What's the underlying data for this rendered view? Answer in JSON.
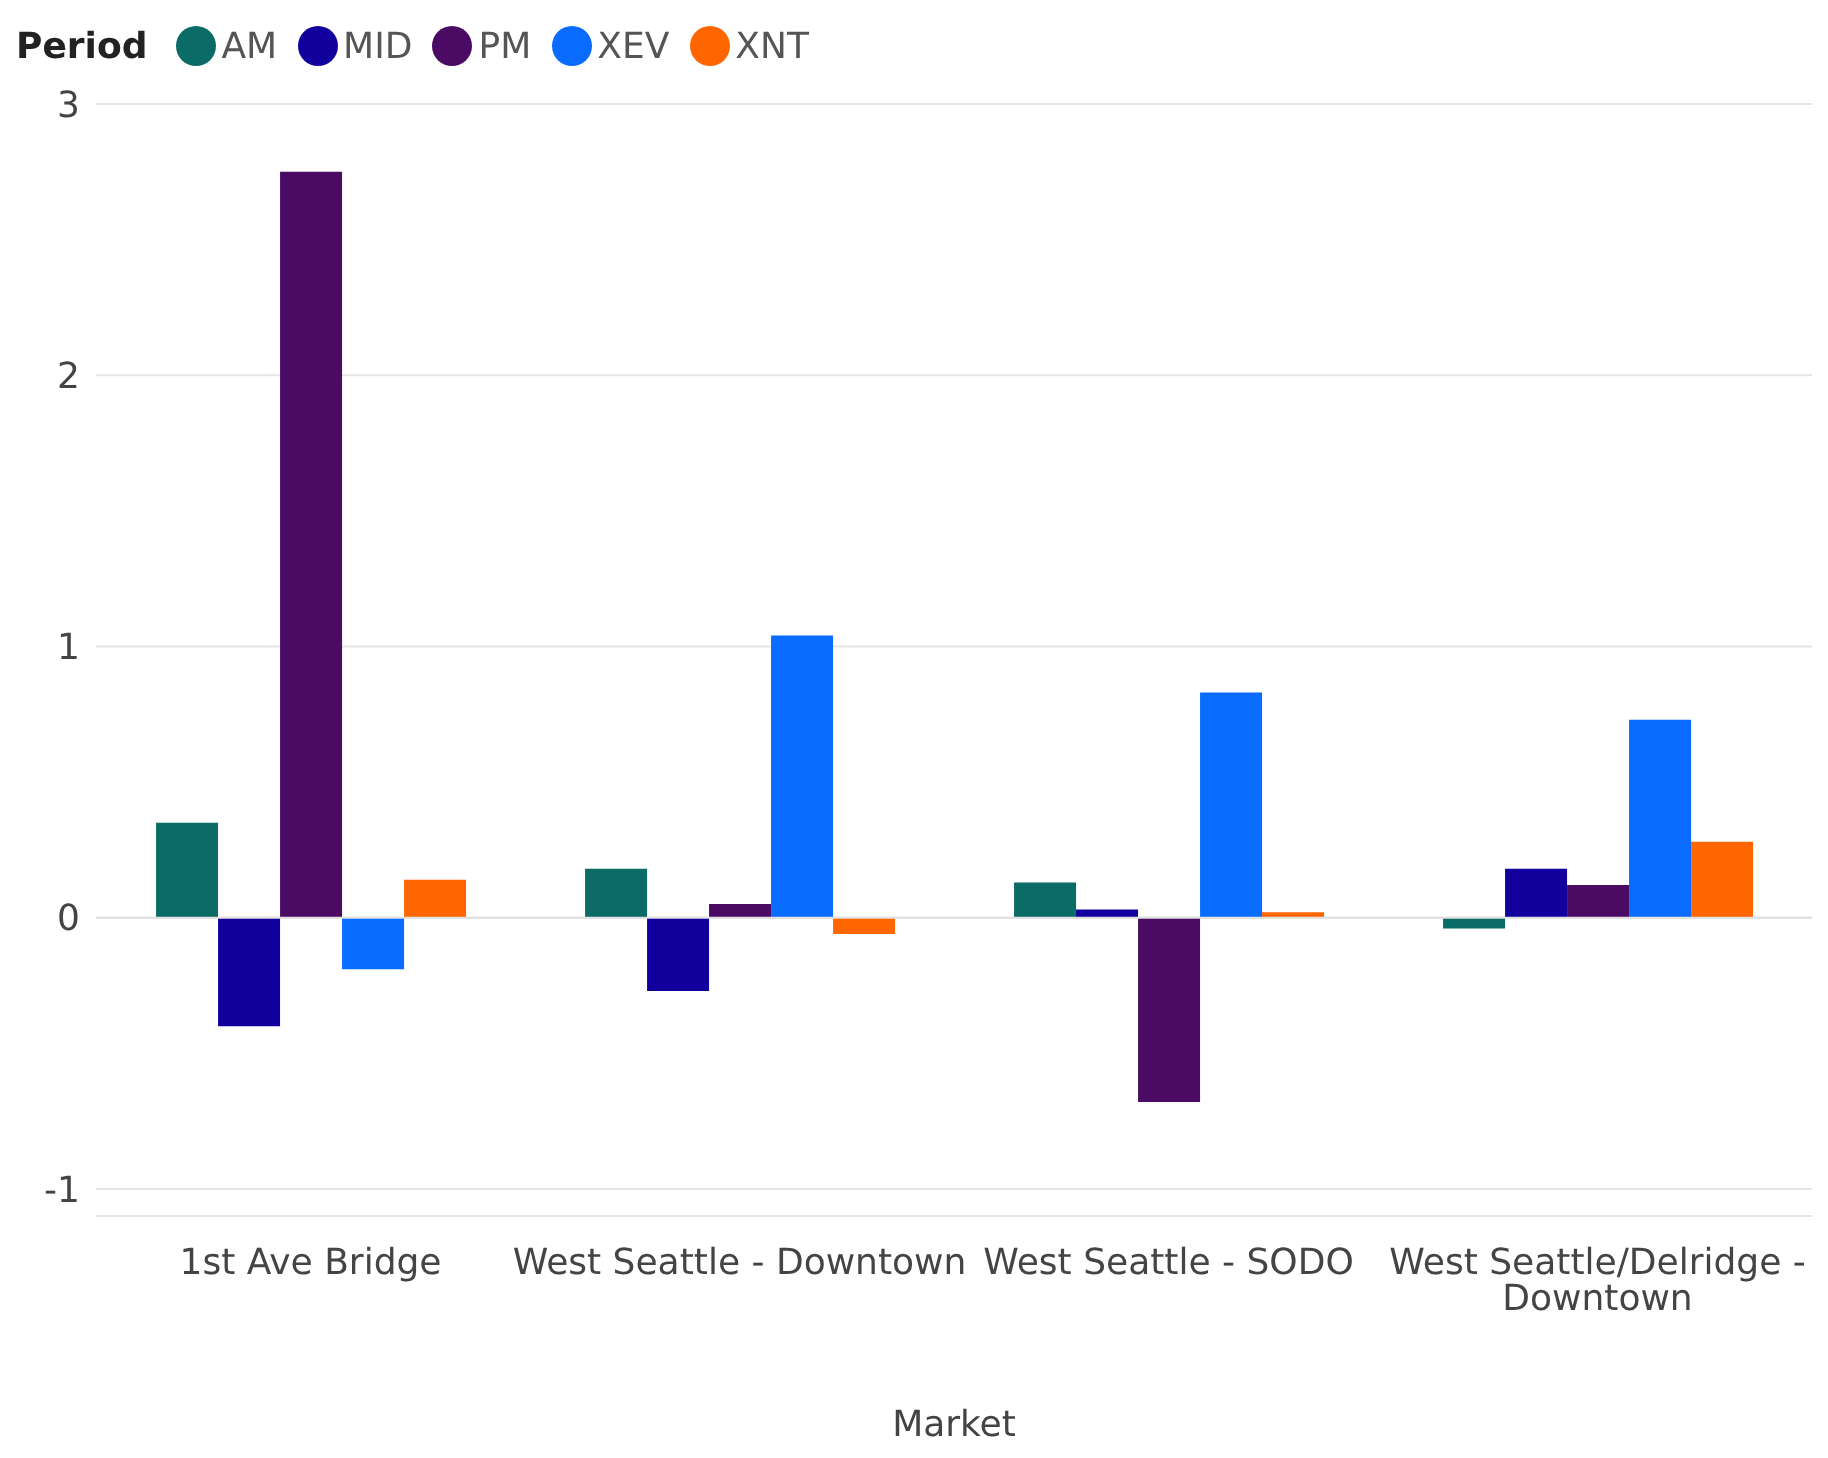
{
  "chart_data": {
    "type": "bar",
    "xlabel": "Market",
    "legend_title": "Period",
    "legend": "top left",
    "grid": "y",
    "categories": [
      "1st Ave Bridge",
      "West Seattle - Downtown",
      "West Seattle - SODO",
      "West Seattle/Delridge - Downtown"
    ],
    "ylim": [
      -1.1,
      3
    ],
    "yticks": [
      -1,
      0,
      1,
      2,
      3
    ],
    "series": [
      {
        "name": "AM",
        "color": "#0b6b66",
        "values": [
          0.35,
          0.18,
          0.13,
          -0.04
        ]
      },
      {
        "name": "MID",
        "color": "#12009e",
        "values": [
          -0.4,
          -0.27,
          0.03,
          0.18
        ]
      },
      {
        "name": "PM",
        "color": "#4b0a63",
        "values": [
          2.75,
          0.05,
          -0.68,
          0.12
        ]
      },
      {
        "name": "XEV",
        "color": "#0a6bff",
        "values": [
          -0.19,
          1.04,
          0.83,
          0.73
        ]
      },
      {
        "name": "XNT",
        "color": "#ff6600",
        "values": [
          0.14,
          -0.06,
          0.02,
          0.28
        ]
      }
    ]
  }
}
